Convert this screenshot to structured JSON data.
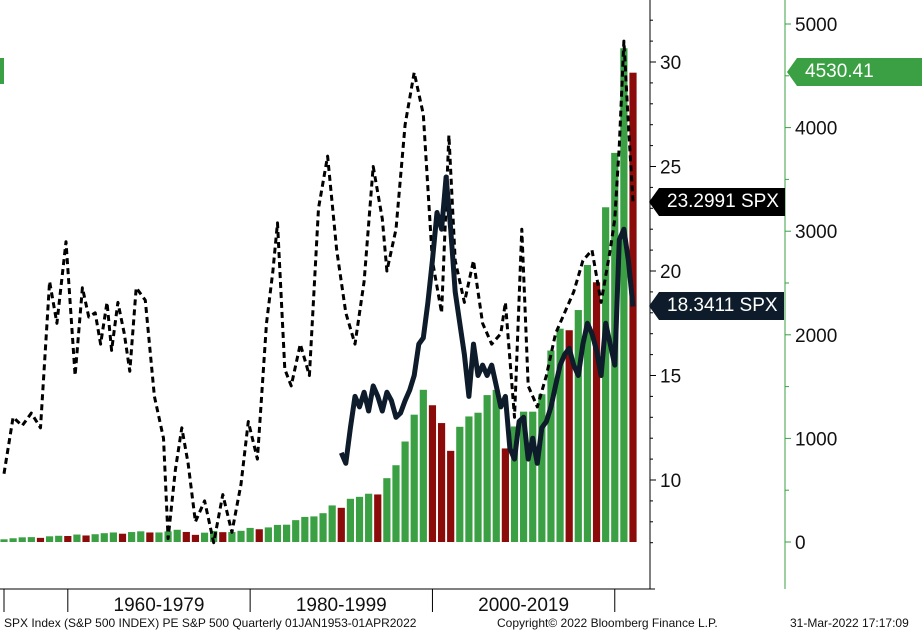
{
  "chart_data": {
    "type": "combo",
    "x_range": [
      1953,
      2022
    ],
    "eras": [
      "1960-1979",
      "1980-1999",
      "2000-2019"
    ],
    "pe_axis": {
      "ticks": [
        10,
        15,
        20,
        25,
        30
      ],
      "range": [
        6.6,
        32.6
      ]
    },
    "price_axis": {
      "ticks": [
        0,
        1000,
        2000,
        3000,
        4000,
        5000
      ],
      "range": [
        0,
        5000
      ]
    },
    "grid": false,
    "series": [
      {
        "style": "dashed",
        "color": "#000000",
        "axis": "pe",
        "last_value_label": "23.2991 SPX",
        "points": [
          [
            1953.0,
            10.3
          ],
          [
            1954.0,
            13.0
          ],
          [
            1955.0,
            12.6
          ],
          [
            1956.0,
            13.2
          ],
          [
            1957.0,
            12.5
          ],
          [
            1958.0,
            19.5
          ],
          [
            1958.8,
            17.5
          ],
          [
            1959.8,
            21.4
          ],
          [
            1960.8,
            15.0
          ],
          [
            1961.6,
            19.2
          ],
          [
            1962.3,
            17.8
          ],
          [
            1963.0,
            18.0
          ],
          [
            1963.6,
            16.5
          ],
          [
            1964.3,
            18.5
          ],
          [
            1964.8,
            16.2
          ],
          [
            1965.5,
            18.5
          ],
          [
            1966.2,
            17.0
          ],
          [
            1966.8,
            15.2
          ],
          [
            1967.5,
            19.2
          ],
          [
            1968.5,
            18.6
          ],
          [
            1969.5,
            14.0
          ],
          [
            1970.5,
            12.0
          ],
          [
            1971.0,
            7.2
          ],
          [
            1971.8,
            10.5
          ],
          [
            1972.5,
            12.5
          ],
          [
            1973.2,
            10.8
          ],
          [
            1974.0,
            8.0
          ],
          [
            1975.0,
            9.0
          ],
          [
            1976.0,
            7.0
          ],
          [
            1977.0,
            9.3
          ],
          [
            1978.0,
            7.5
          ],
          [
            1979.0,
            9.8
          ],
          [
            1979.8,
            12.8
          ],
          [
            1980.8,
            11.0
          ],
          [
            1981.8,
            17.5
          ],
          [
            1982.5,
            20.0
          ],
          [
            1983.0,
            22.3
          ],
          [
            1983.8,
            15.3
          ],
          [
            1984.5,
            14.5
          ],
          [
            1985.5,
            16.5
          ],
          [
            1986.5,
            15.0
          ],
          [
            1987.5,
            23.0
          ],
          [
            1988.5,
            25.5
          ],
          [
            1989.5,
            21.0
          ],
          [
            1990.5,
            18.0
          ],
          [
            1991.5,
            16.5
          ],
          [
            1992.5,
            19.5
          ],
          [
            1993.5,
            25.0
          ],
          [
            1994.5,
            22.5
          ],
          [
            1995.0,
            20.0
          ],
          [
            1996.0,
            22.0
          ],
          [
            1997.0,
            27.0
          ],
          [
            1998.0,
            29.5
          ],
          [
            1999.0,
            27.5
          ],
          [
            2000.0,
            20.5
          ],
          [
            2001.0,
            18.0
          ],
          [
            2001.8,
            26.5
          ],
          [
            2002.5,
            20.5
          ],
          [
            2003.5,
            18.5
          ],
          [
            2004.5,
            20.5
          ],
          [
            2005.5,
            17.5
          ],
          [
            2006.5,
            16.5
          ],
          [
            2007.5,
            17.0
          ],
          [
            2008.0,
            18.5
          ],
          [
            2009.0,
            13.0
          ],
          [
            2009.8,
            22.0
          ],
          [
            2010.5,
            14.5
          ],
          [
            2011.5,
            13.5
          ],
          [
            2012.5,
            15.0
          ],
          [
            2013.5,
            17.0
          ],
          [
            2014.5,
            18.0
          ],
          [
            2015.5,
            19.0
          ],
          [
            2016.5,
            20.5
          ],
          [
            2017.5,
            21.0
          ],
          [
            2018.5,
            18.5
          ],
          [
            2019.5,
            21.0
          ],
          [
            2020.0,
            22.5
          ],
          [
            2020.5,
            26.0
          ],
          [
            2021.0,
            31.0
          ],
          [
            2021.5,
            27.0
          ],
          [
            2022.0,
            23.3
          ]
        ]
      },
      {
        "style": "solid",
        "color": "#0d1b2a",
        "axis": "pe",
        "last_value_label": "18.3411 SPX",
        "points": [
          [
            1990.0,
            11.3
          ],
          [
            1990.5,
            10.8
          ],
          [
            1991.0,
            12.5
          ],
          [
            1991.5,
            14.0
          ],
          [
            1992.0,
            13.5
          ],
          [
            1992.5,
            14.2
          ],
          [
            1993.0,
            13.3
          ],
          [
            1993.5,
            14.5
          ],
          [
            1994.0,
            14.0
          ],
          [
            1994.5,
            13.3
          ],
          [
            1995.0,
            14.2
          ],
          [
            1995.5,
            13.8
          ],
          [
            1996.0,
            13.0
          ],
          [
            1996.5,
            13.2
          ],
          [
            1997.0,
            13.8
          ],
          [
            1997.5,
            14.3
          ],
          [
            1998.0,
            15.0
          ],
          [
            1998.5,
            16.5
          ],
          [
            1999.0,
            16.8
          ],
          [
            1999.5,
            18.5
          ],
          [
            2000.0,
            20.5
          ],
          [
            2000.5,
            22.8
          ],
          [
            2001.0,
            22.0
          ],
          [
            2001.5,
            24.5
          ],
          [
            2002.0,
            22.0
          ],
          [
            2002.5,
            19.0
          ],
          [
            2003.0,
            17.5
          ],
          [
            2003.5,
            16.0
          ],
          [
            2004.0,
            14.0
          ],
          [
            2004.5,
            16.5
          ],
          [
            2005.0,
            15.0
          ],
          [
            2005.5,
            15.5
          ],
          [
            2006.0,
            15.0
          ],
          [
            2006.5,
            15.5
          ],
          [
            2007.0,
            14.5
          ],
          [
            2007.5,
            13.5
          ],
          [
            2008.0,
            14.0
          ],
          [
            2008.5,
            11.5
          ],
          [
            2009.0,
            11.0
          ],
          [
            2009.5,
            12.8
          ],
          [
            2010.0,
            13.0
          ],
          [
            2010.5,
            11.0
          ],
          [
            2011.0,
            12.0
          ],
          [
            2011.5,
            10.8
          ],
          [
            2012.0,
            12.5
          ],
          [
            2012.5,
            12.8
          ],
          [
            2013.0,
            13.5
          ],
          [
            2013.5,
            14.5
          ],
          [
            2014.0,
            15.5
          ],
          [
            2014.5,
            16.0
          ],
          [
            2015.0,
            16.3
          ],
          [
            2015.5,
            15.5
          ],
          [
            2016.0,
            15.0
          ],
          [
            2016.5,
            16.5
          ],
          [
            2017.0,
            17.5
          ],
          [
            2017.5,
            17.0
          ],
          [
            2018.0,
            16.2
          ],
          [
            2018.5,
            15.0
          ],
          [
            2019.0,
            17.5
          ],
          [
            2019.5,
            16.5
          ],
          [
            2020.0,
            15.5
          ],
          [
            2020.5,
            21.5
          ],
          [
            2021.0,
            22.0
          ],
          [
            2021.5,
            20.5
          ],
          [
            2022.0,
            18.3
          ]
        ]
      },
      {
        "style": "bars",
        "axis": "price",
        "colors": {
          "up": "#3aa043",
          "down": "#8b0a0a"
        },
        "last_value_label": "4530.41 SPX",
        "points": [
          [
            1953,
            26
          ],
          [
            1954,
            36
          ],
          [
            1955,
            45
          ],
          [
            1956,
            47
          ],
          [
            1957,
            40
          ],
          [
            1958,
            55
          ],
          [
            1959,
            60
          ],
          [
            1960,
            58
          ],
          [
            1961,
            72
          ],
          [
            1962,
            63
          ],
          [
            1963,
            75
          ],
          [
            1964,
            85
          ],
          [
            1965,
            92
          ],
          [
            1966,
            80
          ],
          [
            1967,
            96
          ],
          [
            1968,
            103
          ],
          [
            1969,
            92
          ],
          [
            1970,
            92
          ],
          [
            1971,
            102
          ],
          [
            1972,
            118
          ],
          [
            1973,
            97
          ],
          [
            1974,
            69
          ],
          [
            1975,
            90
          ],
          [
            1976,
            107
          ],
          [
            1977,
            95
          ],
          [
            1978,
            96
          ],
          [
            1979,
            108
          ],
          [
            1980,
            136
          ],
          [
            1981,
            123
          ],
          [
            1982,
            141
          ],
          [
            1983,
            165
          ],
          [
            1984,
            167
          ],
          [
            1985,
            211
          ],
          [
            1986,
            242
          ],
          [
            1987,
            247
          ],
          [
            1988,
            278
          ],
          [
            1989,
            353
          ],
          [
            1990,
            330
          ],
          [
            1991,
            417
          ],
          [
            1992,
            436
          ],
          [
            1993,
            466
          ],
          [
            1994,
            459
          ],
          [
            1995,
            616
          ],
          [
            1996,
            741
          ],
          [
            1997,
            970
          ],
          [
            1998,
            1229
          ],
          [
            1999,
            1469
          ],
          [
            2000,
            1320
          ],
          [
            2001,
            1148
          ],
          [
            2002,
            880
          ],
          [
            2003,
            1112
          ],
          [
            2004,
            1212
          ],
          [
            2005,
            1248
          ],
          [
            2006,
            1418
          ],
          [
            2007,
            1468
          ],
          [
            2008,
            903
          ],
          [
            2009,
            1115
          ],
          [
            2010,
            1258
          ],
          [
            2011,
            1258
          ],
          [
            2012,
            1426
          ],
          [
            2013,
            1848
          ],
          [
            2014,
            2059
          ],
          [
            2015,
            2044
          ],
          [
            2016,
            2239
          ],
          [
            2017,
            2674
          ],
          [
            2018,
            2507
          ],
          [
            2019,
            3231
          ],
          [
            2020,
            3756
          ],
          [
            2021,
            4766
          ],
          [
            2022,
            4530
          ]
        ]
      }
    ]
  },
  "footer": {
    "description": "SPX Index (S&P 500 INDEX) PE S&P 500  Quarterly 01JAN1953-01APR2022",
    "copyright": "Copyright© 2022 Bloomberg Finance L.P.",
    "timestamp": "31-Mar-2022 17:17:09"
  }
}
